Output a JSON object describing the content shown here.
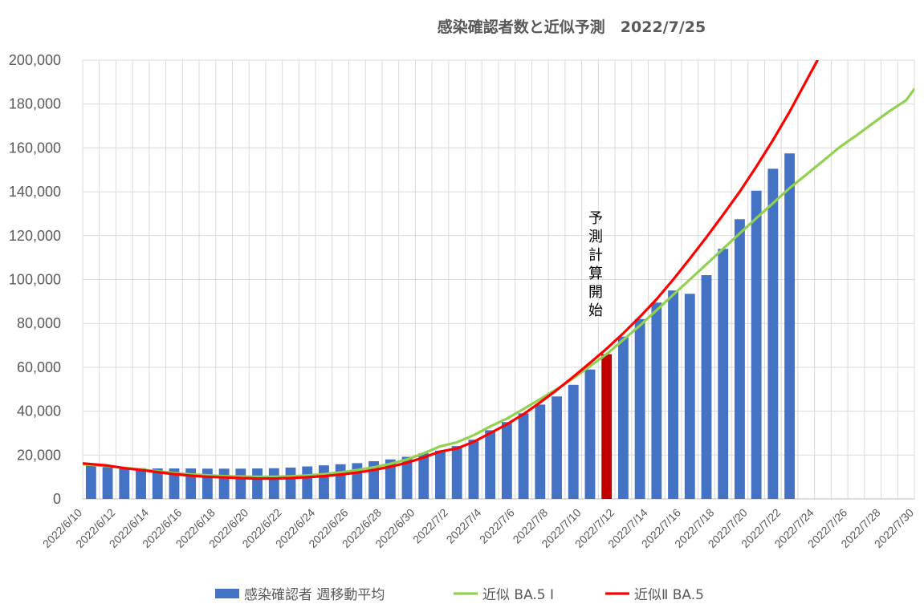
{
  "chart_data": {
    "type": "bar",
    "title": "感染確認者数と近似予測　2022/7/25",
    "annotation": "予測計算開始",
    "ylim": [
      0,
      200000
    ],
    "y_ticks": [
      "0",
      "20,000",
      "40,000",
      "60,000",
      "80,000",
      "100,000",
      "120,000",
      "140,000",
      "160,000",
      "180,000",
      "200,000"
    ],
    "x_tick_labels": [
      "2022/6/10",
      "2022/6/12",
      "2022/6/14",
      "2022/6/16",
      "2022/6/18",
      "2022/6/20",
      "2022/6/22",
      "2022/6/24",
      "2022/6/26",
      "2022/6/28",
      "2022/6/30",
      "2022/7/2",
      "2022/7/4",
      "2022/7/6",
      "2022/7/8",
      "2022/7/10",
      "2022/7/12",
      "2022/7/14",
      "2022/7/16",
      "2022/7/18",
      "2022/7/20",
      "2022/7/22",
      "2022/7/24",
      "2022/7/26",
      "2022/7/28",
      "2022/7/30"
    ],
    "grid": true,
    "legend_position": "bottom",
    "highlight_bar_index": 31,
    "colors": {
      "bar": "#4472C4",
      "highlight": "#C00000",
      "fit1": "#92D050",
      "fit2": "#FF0000",
      "grid": "#D9D9D9",
      "axis": "#BFBFBF"
    },
    "series": [
      {
        "name": "感染確認者 週移動平均",
        "type": "bar",
        "values": [
          15200,
          14500,
          14000,
          14000,
          13900,
          13900,
          13900,
          13800,
          13800,
          13800,
          13900,
          14000,
          14300,
          14800,
          15300,
          15800,
          16300,
          17200,
          18000,
          19200,
          20800,
          22000,
          24100,
          27000,
          31300,
          35000,
          39000,
          43000,
          46700,
          52000,
          59000,
          66000,
          74000,
          82000,
          89500,
          95000,
          93500,
          102000,
          114000,
          127500,
          140500,
          150500,
          157500
        ]
      },
      {
        "name": "近似 BA.5 Ⅰ",
        "type": "line",
        "values": [
          15800,
          15000,
          14200,
          13400,
          12600,
          11800,
          11200,
          10800,
          10400,
          10200,
          10100,
          10100,
          10300,
          10700,
          11300,
          12100,
          13200,
          14400,
          16000,
          18000,
          20800,
          24000,
          25800,
          29000,
          33000,
          36600,
          41000,
          45500,
          50000,
          55000,
          60500,
          66000,
          72500,
          79000,
          86000,
          93000,
          100000,
          107000,
          114000,
          121000,
          128000,
          134800,
          141700,
          147800,
          154000,
          160300,
          165600,
          171200,
          176700,
          181700,
          186800
        ]
      },
      {
        "name": "近似Ⅱ BA.5",
        "type": "line",
        "values": [
          16200,
          15200,
          14000,
          13200,
          12200,
          11300,
          10600,
          10100,
          9800,
          9500,
          9300,
          9300,
          9500,
          9900,
          10400,
          11100,
          12000,
          13200,
          14700,
          16500,
          18900,
          21600,
          23000,
          26000,
          30000,
          34000,
          38600,
          44000,
          49600,
          55700,
          62000,
          68500,
          75500,
          83000,
          91000,
          100000,
          109500,
          119300,
          129500,
          140000,
          151500,
          163600,
          176500,
          190500,
          204500
        ]
      }
    ]
  }
}
